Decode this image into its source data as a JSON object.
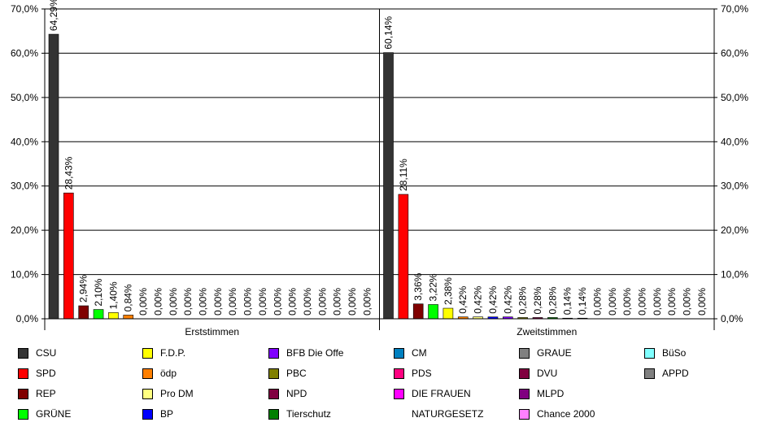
{
  "chart_data": {
    "type": "bar",
    "ylim": [
      0,
      70
    ],
    "y_ticks": [
      "0,0%",
      "10,0%",
      "20,0%",
      "30,0%",
      "40,0%",
      "50,0%",
      "60,0%",
      "70,0%"
    ],
    "grid": true,
    "legend_position": "bottom",
    "groups": [
      {
        "category": "Erststimmen",
        "values": [
          64.29,
          28.43,
          2.94,
          2.1,
          1.4,
          0.84,
          0,
          0,
          0,
          0,
          0,
          0,
          0,
          0,
          0,
          0,
          0,
          0,
          0,
          0,
          0,
          0
        ],
        "labels": [
          "64,29%",
          "28,43%",
          "2,94%",
          "2,10%",
          "1,40%",
          "0,84%",
          "0,00%",
          "0,00%",
          "0,00%",
          "0,00%",
          "0,00%",
          "0,00%",
          "0,00%",
          "0,00%",
          "0,00%",
          "0,00%",
          "0,00%",
          "0,00%",
          "0,00%",
          "0,00%",
          "0,00%",
          "0,00%"
        ]
      },
      {
        "category": "Zweitstimmen",
        "values": [
          60.14,
          28.11,
          3.36,
          3.22,
          2.38,
          0.42,
          0.42,
          0.42,
          0.42,
          0.28,
          0.28,
          0.28,
          0.14,
          0.14,
          0,
          0,
          0,
          0,
          0,
          0,
          0,
          0
        ],
        "labels": [
          "60,14%",
          "28,11%",
          "3,36%",
          "3,22%",
          "2,38%",
          "0,42%",
          "0,42%",
          "0,42%",
          "0,42%",
          "0,28%",
          "0,28%",
          "0,28%",
          "0,14%",
          "0,14%",
          "0,00%",
          "0,00%",
          "0,00%",
          "0,00%",
          "0,00%",
          "0,00%",
          "0,00%",
          "0,00%"
        ]
      }
    ],
    "series": [
      {
        "name": "CSU",
        "color": "#333333"
      },
      {
        "name": "SPD",
        "color": "#ff0000"
      },
      {
        "name": "REP",
        "color": "#800000"
      },
      {
        "name": "GRÜNE",
        "color": "#00ff00"
      },
      {
        "name": "F.D.P.",
        "color": "#ffff00"
      },
      {
        "name": "ödp",
        "color": "#ff8000"
      },
      {
        "name": "Pro DM",
        "color": "#ffff80"
      },
      {
        "name": "BP",
        "color": "#0000ff"
      },
      {
        "name": "BFB Die Offe",
        "color": "#8000ff"
      },
      {
        "name": "PBC",
        "color": "#808000"
      },
      {
        "name": "NPD",
        "color": "#800040"
      },
      {
        "name": "Tierschutz",
        "color": "#008000"
      },
      {
        "name": "CM",
        "color": "#0080c0"
      },
      {
        "name": "PDS",
        "color": "#ff0080"
      },
      {
        "name": "DIE FRAUEN",
        "color": "#ff00ff"
      },
      {
        "name": "NATURGESETZ",
        "color": "#ffffff"
      },
      {
        "name": "GRAUE",
        "color": "#808080"
      },
      {
        "name": "DVU",
        "color": "#800040"
      },
      {
        "name": "MLPD",
        "color": "#800080"
      },
      {
        "name": "Chance 2000",
        "color": "#ff80ff"
      },
      {
        "name": "BüSo",
        "color": "#80ffff"
      },
      {
        "name": "APPD",
        "color": "#808080"
      }
    ]
  }
}
